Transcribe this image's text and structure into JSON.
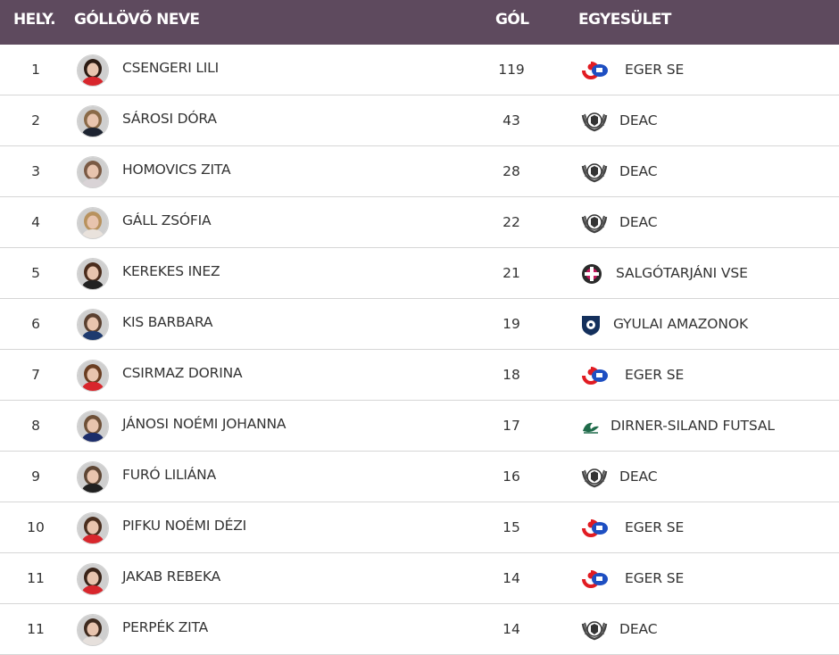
{
  "header": {
    "rank": "HELY.",
    "name": "GÓLLÖVŐ NEVE",
    "goals": "GÓL",
    "club": "EGYESÜLET"
  },
  "colors": {
    "header_bg": "#5e4a5e",
    "eger_red": "#e11b22",
    "eger_blue": "#1e4fc2"
  },
  "rows": [
    {
      "rank": "1",
      "name": "CSENGERI LILI",
      "goals": "119",
      "club": "EGER SE",
      "club_icon": "eger-se-logo-icon",
      "shirt": "#d8262c",
      "hair": "#2b1a12"
    },
    {
      "rank": "2",
      "name": "SÁROSI DÓRA",
      "goals": "43",
      "club": "DEAC",
      "club_icon": "deac-logo-icon",
      "shirt": "#1d2330",
      "hair": "#8a6a48"
    },
    {
      "rank": "3",
      "name": "HOMOVICS ZITA",
      "goals": "28",
      "club": "DEAC",
      "club_icon": "deac-logo-icon",
      "shirt": "#d9d3d6",
      "hair": "#7a5a44"
    },
    {
      "rank": "4",
      "name": "GÁLL ZSÓFIA",
      "goals": "22",
      "club": "DEAC",
      "club_icon": "deac-logo-icon",
      "shirt": "#e9e2dc",
      "hair": "#b8925e"
    },
    {
      "rank": "5",
      "name": "KEREKES INEZ",
      "goals": "21",
      "club": "SALGÓTARJÁNI VSE",
      "club_icon": "salgotarjani-vse-logo-icon",
      "shirt": "#222222",
      "hair": "#4a2c1c"
    },
    {
      "rank": "6",
      "name": "KIS BARBARA",
      "goals": "19",
      "club": "GYULAI AMAZONOK",
      "club_icon": "gyulai-amazonok-logo-icon",
      "shirt": "#1e3a6e",
      "hair": "#5a4030"
    },
    {
      "rank": "7",
      "name": "CSIRMAZ DORINA",
      "goals": "18",
      "club": "EGER SE",
      "club_icon": "eger-se-logo-icon",
      "shirt": "#d8262c",
      "hair": "#6a3e22"
    },
    {
      "rank": "8",
      "name": "JÁNOSI NOÉMI JOHANNA",
      "goals": "17",
      "club": "DIRNER-SILAND FUTSAL",
      "club_icon": "dirner-siland-logo-icon",
      "shirt": "#1c2d6a",
      "hair": "#6e5038"
    },
    {
      "rank": "9",
      "name": "FURÓ LILIÁNA",
      "goals": "16",
      "club": "DEAC",
      "club_icon": "deac-logo-icon",
      "shirt": "#202020",
      "hair": "#5e4634"
    },
    {
      "rank": "10",
      "name": "PIFKU NOÉMI DÉZI",
      "goals": "15",
      "club": "EGER SE",
      "club_icon": "eger-se-logo-icon",
      "shirt": "#d8262c",
      "hair": "#4a2e1e"
    },
    {
      "rank": "11",
      "name": "JAKAB REBEKA",
      "goals": "14",
      "club": "EGER SE",
      "club_icon": "eger-se-logo-icon",
      "shirt": "#d8262c",
      "hair": "#3a2418"
    },
    {
      "rank": "11",
      "name": "PERPÉK ZITA",
      "goals": "14",
      "club": "DEAC",
      "club_icon": "deac-logo-icon",
      "shirt": "#e6e0dc",
      "hair": "#3e2a1e"
    }
  ]
}
